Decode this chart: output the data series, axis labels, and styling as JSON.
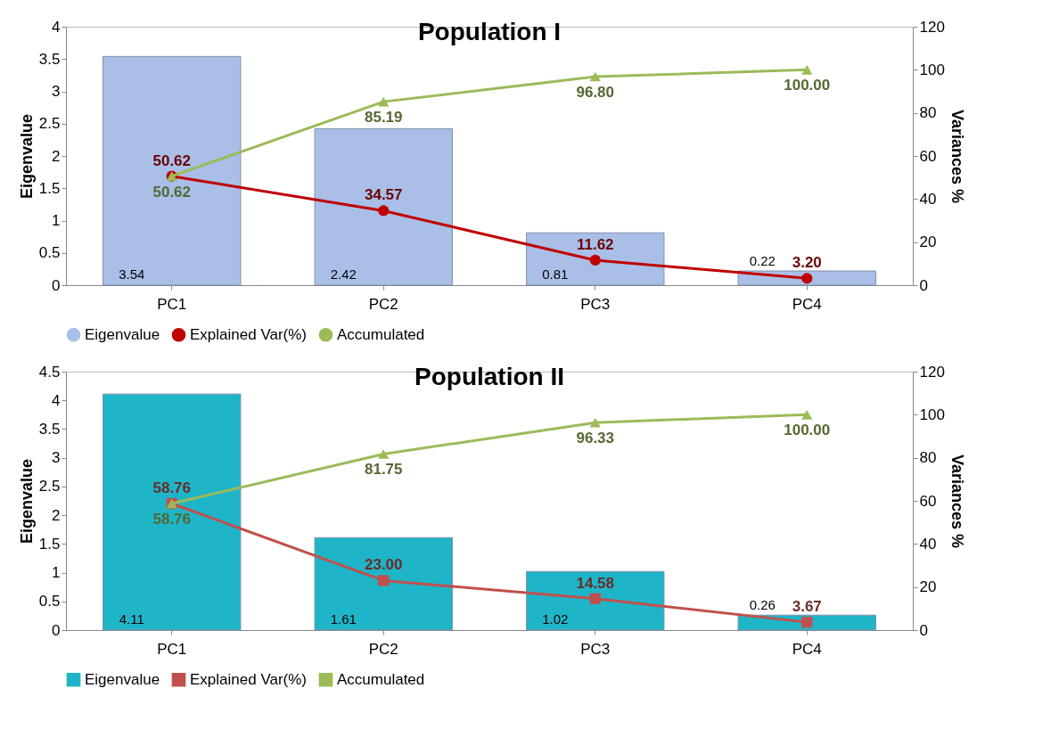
{
  "chart_data": [
    {
      "type": "bar",
      "title": "Population I",
      "categories": [
        "PC1",
        "PC2",
        "PC3",
        "PC4"
      ],
      "ylabel": "Eigenvalue",
      "y2label": "Variances %",
      "ylim": [
        0,
        4
      ],
      "yticks": [
        0,
        0.5,
        1,
        1.5,
        2,
        2.5,
        3,
        3.5,
        4
      ],
      "y2lim": [
        0,
        120
      ],
      "y2ticks": [
        0,
        20,
        40,
        60,
        80,
        100,
        120
      ],
      "legend": "bottom",
      "series": [
        {
          "name": "Eigenvalue",
          "type": "bar",
          "color": "#a9bfe8",
          "values": [
            3.54,
            2.42,
            0.81,
            0.22
          ],
          "value_labels": [
            "3.54",
            "2.42",
            "0.81",
            "0.22"
          ]
        },
        {
          "name": "Explained Var(%)",
          "type": "line",
          "axis": "y2",
          "marker": "circle",
          "color": "#c00000",
          "values": [
            50.62,
            34.57,
            11.62,
            3.2
          ],
          "value_labels": [
            "50.62",
            "34.57",
            "11.62",
            "3.20"
          ]
        },
        {
          "name": "Accumulated",
          "type": "line",
          "axis": "y2",
          "marker": "triangle",
          "color": "#9bbb59",
          "values": [
            50.62,
            85.19,
            96.8,
            100
          ],
          "value_labels": [
            "50.62",
            "85.19",
            "96.80",
            "100.00"
          ]
        }
      ]
    },
    {
      "type": "bar",
      "title": "Population II",
      "categories": [
        "PC1",
        "PC2",
        "PC3",
        "PC4"
      ],
      "ylabel": "Eigenvalue",
      "y2label": "Variances %",
      "ylim": [
        0,
        4.5
      ],
      "yticks": [
        0,
        0.5,
        1,
        1.5,
        2,
        2.5,
        3,
        3.5,
        4,
        4.5
      ],
      "y2lim": [
        0,
        120
      ],
      "y2ticks": [
        0,
        20,
        40,
        60,
        80,
        100,
        120
      ],
      "legend": "bottom",
      "series": [
        {
          "name": "Eigenvalue",
          "type": "bar",
          "color": "#1fb5c8",
          "values": [
            4.11,
            1.61,
            1.02,
            0.26
          ],
          "value_labels": [
            "4.11",
            "1.61",
            "1.02",
            "0.26"
          ]
        },
        {
          "name": "Explained Var(%)",
          "type": "line",
          "axis": "y2",
          "marker": "square",
          "color": "#c0504d",
          "values": [
            58.76,
            23.0,
            14.58,
            3.67
          ],
          "value_labels": [
            "58.76",
            "23.00",
            "14.58",
            "3.67"
          ]
        },
        {
          "name": "Accumulated",
          "type": "line",
          "axis": "y2",
          "marker": "triangle",
          "color": "#9bbb59",
          "values": [
            58.76,
            81.75,
            96.33,
            100
          ],
          "value_labels": [
            "58.76",
            "81.75",
            "96.33",
            "100.00"
          ]
        }
      ]
    }
  ]
}
